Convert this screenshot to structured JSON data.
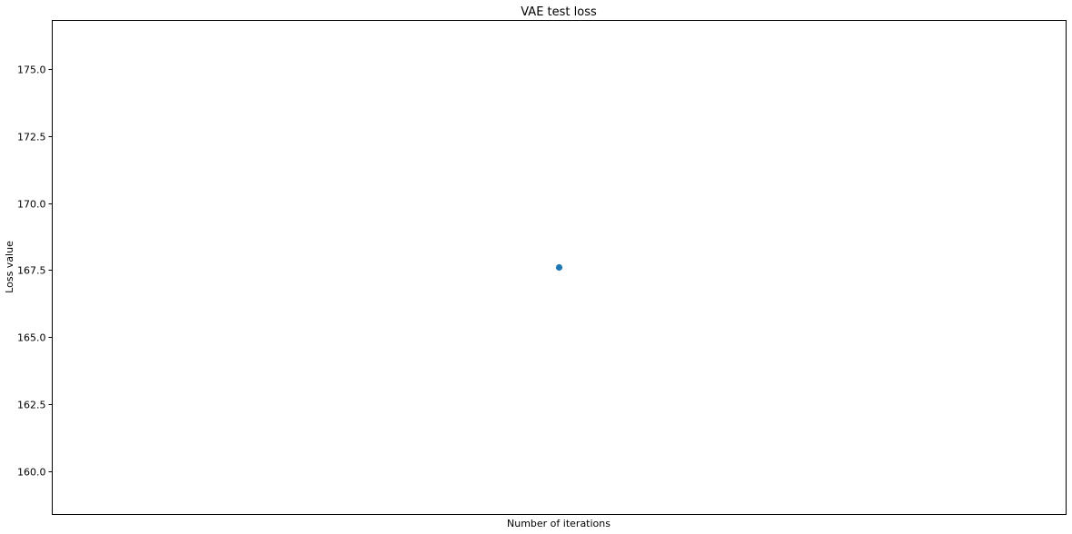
{
  "chart_data": {
    "type": "scatter",
    "title": "VAE test loss",
    "xlabel": "Number of iterations",
    "ylabel": "Loss value",
    "ylim": [
      158.4,
      176.8
    ],
    "y_ticks": [
      "160.0",
      "162.5",
      "165.0",
      "167.5",
      "170.0",
      "172.5",
      "175.0"
    ],
    "y_tick_values": [
      160.0,
      162.5,
      165.0,
      167.5,
      170.0,
      172.5,
      175.0
    ],
    "x_ticks": [],
    "grid": false,
    "series": [
      {
        "points": [
          {
            "x": 0,
            "y": 167.6
          }
        ],
        "color": "#1f77b4"
      }
    ]
  }
}
